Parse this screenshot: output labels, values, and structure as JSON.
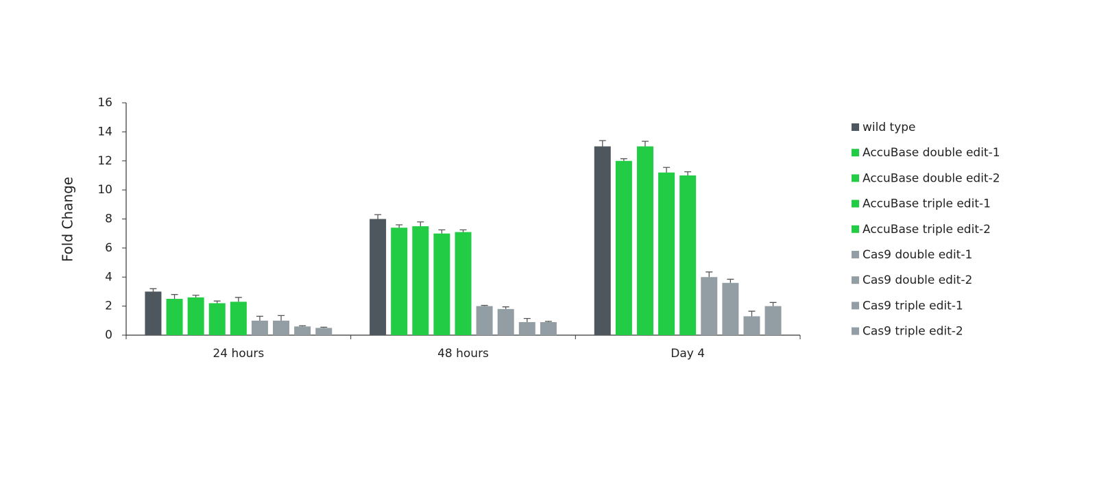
{
  "chart_data": {
    "type": "bar",
    "y_label": "Fold Change",
    "categories": [
      "24 hours",
      "48 hours",
      "Day 4"
    ],
    "ylim": [
      0,
      16
    ],
    "yticks": [
      0,
      2,
      4,
      6,
      8,
      10,
      12,
      14,
      16
    ],
    "series": [
      {
        "name": "wild type",
        "color": "#4d575d",
        "values": [
          3.0,
          8.0,
          13.0
        ],
        "errors": [
          0.2,
          0.3,
          0.4
        ]
      },
      {
        "name": "AccuBase double edit-1",
        "color": "#22cc44",
        "values": [
          2.5,
          7.4,
          12.0
        ],
        "errors": [
          0.3,
          0.2,
          0.15
        ]
      },
      {
        "name": "AccuBase double edit-2",
        "color": "#22cc44",
        "values": [
          2.6,
          7.5,
          13.0
        ],
        "errors": [
          0.15,
          0.3,
          0.35
        ]
      },
      {
        "name": "AccuBase triple edit-1",
        "color": "#22cc44",
        "values": [
          2.2,
          7.0,
          11.2
        ],
        "errors": [
          0.15,
          0.25,
          0.35
        ]
      },
      {
        "name": "AccuBase triple edit-2",
        "color": "#22cc44",
        "values": [
          2.3,
          7.1,
          11.0
        ],
        "errors": [
          0.3,
          0.15,
          0.25
        ]
      },
      {
        "name": "Cas9 double edit-1",
        "color": "#939ea4",
        "values": [
          1.0,
          2.0,
          4.0
        ],
        "errors": [
          0.3,
          0.05,
          0.35
        ]
      },
      {
        "name": "Cas9 double edit-2",
        "color": "#939ea4",
        "values": [
          1.0,
          1.8,
          3.6
        ],
        "errors": [
          0.35,
          0.15,
          0.25
        ]
      },
      {
        "name": "Cas9 triple edit-1",
        "color": "#939ea4",
        "values": [
          0.6,
          0.9,
          1.3
        ],
        "errors": [
          0.05,
          0.25,
          0.35
        ]
      },
      {
        "name": "Cas9 triple edit-2",
        "color": "#939ea4",
        "values": [
          0.5,
          0.9,
          2.0
        ],
        "errors": [
          0.05,
          0.05,
          0.25
        ]
      }
    ]
  }
}
